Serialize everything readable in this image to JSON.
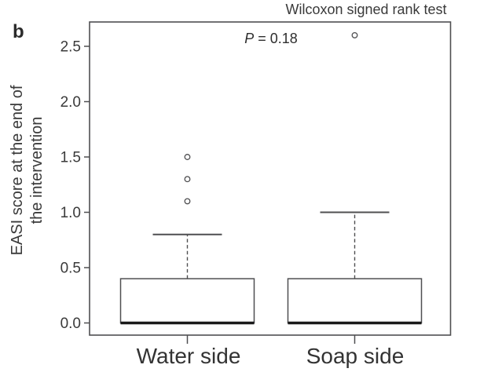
{
  "panel_label": "b",
  "header": {
    "title": "Wilcoxon signed rank test"
  },
  "annotation": {
    "symbol": "P",
    "rest": " = 0.18"
  },
  "y_axis": {
    "label_line1": "EASI score at the end of",
    "label_line2": "the intervention"
  },
  "chart_data": {
    "type": "boxplot",
    "title": "Wilcoxon signed rank test",
    "annotation": "P = 0.18",
    "xlabel": "",
    "ylabel": "EASI score at the end of the intervention",
    "categories": [
      "Water side",
      "Soap side"
    ],
    "yticks": [
      0.0,
      0.5,
      1.0,
      1.5,
      2.0,
      2.5
    ],
    "ytick_labels": [
      "0.0",
      "0.5",
      "1.0",
      "1.5",
      "2.0",
      "2.5"
    ],
    "ylim": [
      -0.11,
      2.73
    ],
    "grid": false,
    "legend": false,
    "series": [
      {
        "name": "Water side",
        "whisker_low": 0.0,
        "q1": 0.0,
        "median": 0.0,
        "q3": 0.4,
        "whisker_high": 0.8,
        "outliers": [
          1.1,
          1.3,
          1.5
        ]
      },
      {
        "name": "Soap side",
        "whisker_low": 0.0,
        "q1": 0.0,
        "median": 0.0,
        "q3": 0.4,
        "whisker_high": 1.0,
        "outliers": [
          2.6
        ]
      }
    ],
    "colors": {
      "line": "#4f4f51",
      "median": "#1a1a1a",
      "text": "#3a3a3a",
      "background": "#ffffff"
    }
  }
}
